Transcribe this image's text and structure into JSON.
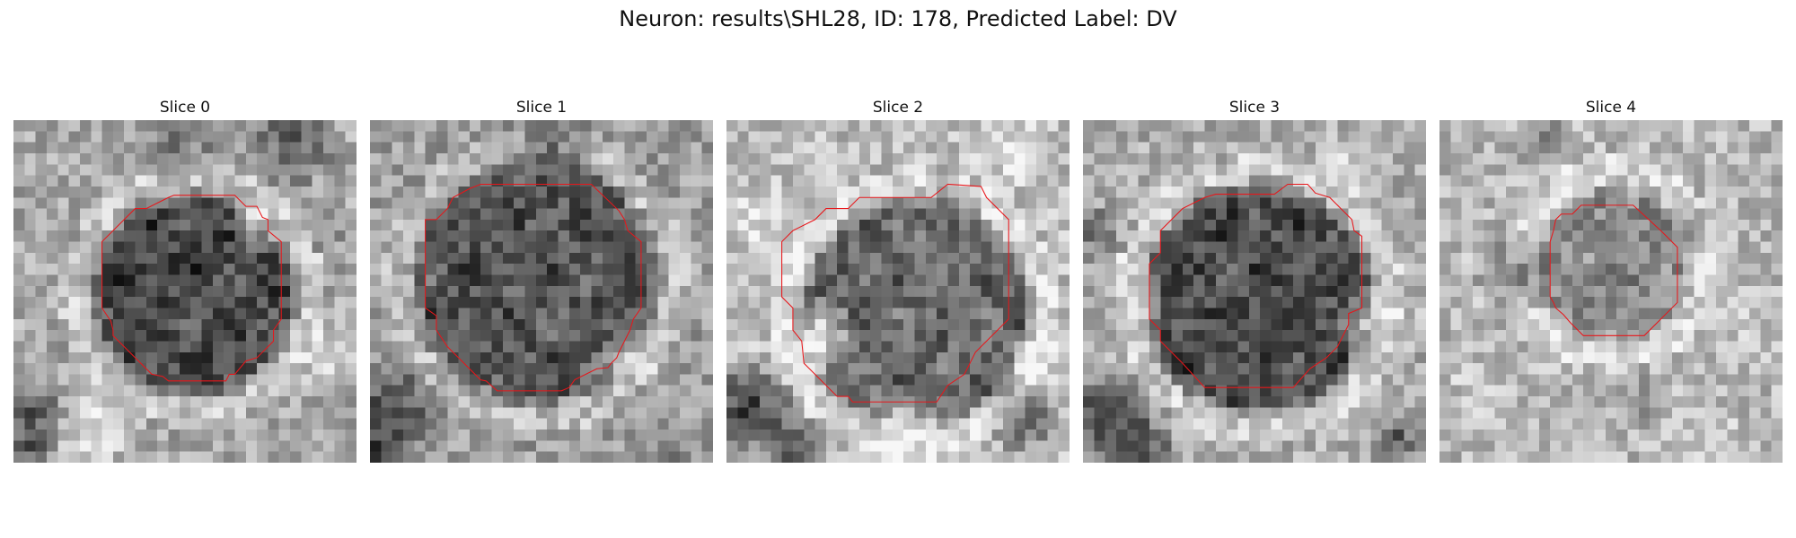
{
  "figure": {
    "title": "Neuron: results\\SHL28, ID: 178, Predicted Label: DV"
  },
  "colors": {
    "outline": "#e8161a",
    "background": "#ffffff",
    "colormap": "grayscale"
  },
  "panels": [
    {
      "title": "Slice 0",
      "image": "grayscale micrograph slice with a dark round cell body",
      "outline_color": "#e8161a"
    },
    {
      "title": "Slice 1",
      "image": "grayscale micrograph slice with a dark round cell body",
      "outline_color": "#e8161a"
    },
    {
      "title": "Slice 2",
      "image": "grayscale micrograph slice with a dark round cell body",
      "outline_color": "#e8161a"
    },
    {
      "title": "Slice 3",
      "image": "grayscale micrograph slice with a dark round cell body",
      "outline_color": "#e8161a"
    },
    {
      "title": "Slice 4",
      "image": "grayscale micrograph slice with a small round cell body",
      "outline_color": "#e8161a"
    }
  ]
}
